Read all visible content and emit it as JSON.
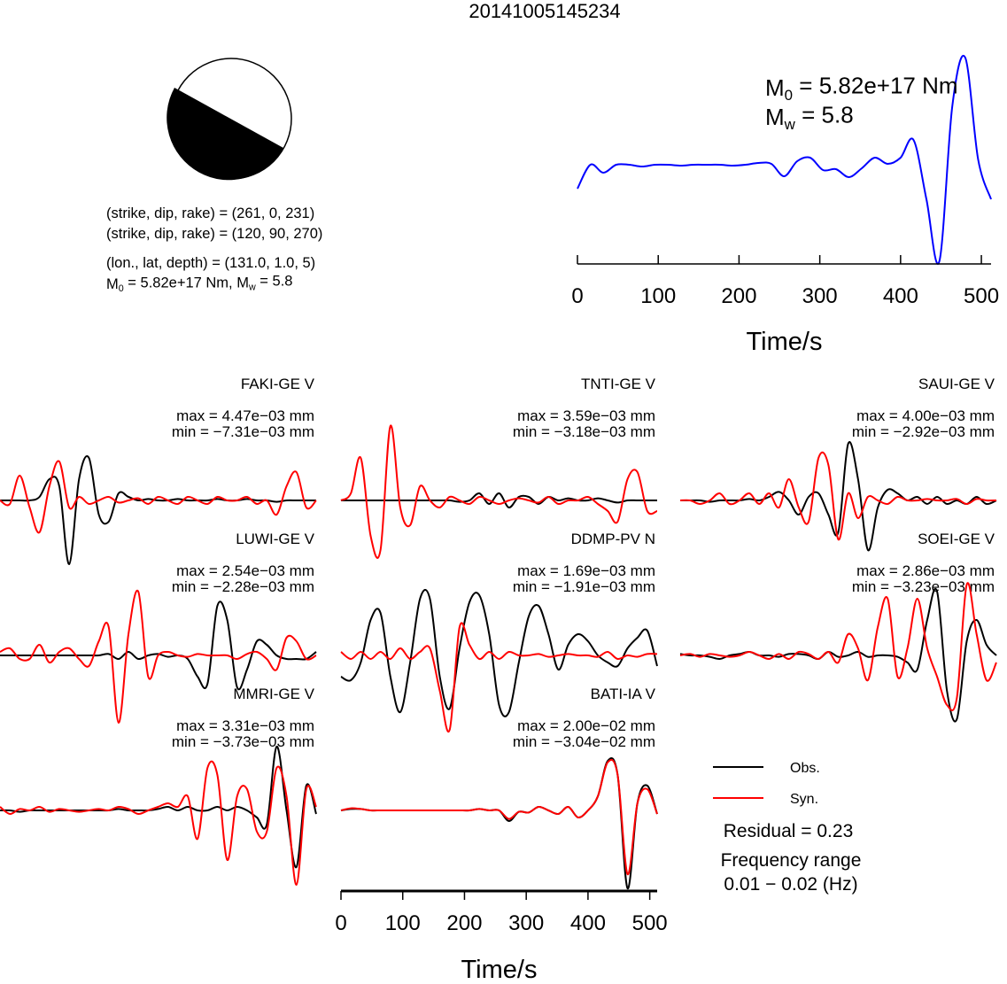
{
  "title": "20141005145234",
  "focal_mechanism": {
    "planes": [
      "(strike, dip, rake) = (261, 0, 231)",
      "(strike, dip, rake) = (120, 90, 270)"
    ],
    "location": "(lon., lat, depth) = (131.0, 1.0, 5)",
    "moment": [
      {
        "text": "M"
      },
      {
        "sub": "0"
      },
      {
        "text": " = 5.82e+17 Nm, M"
      },
      {
        "sub": "w"
      },
      {
        "text": " = 5.8"
      }
    ]
  },
  "chart_data": [
    {
      "type": "line",
      "x": [
        0,
        16,
        32,
        48,
        64,
        80,
        96,
        112,
        128,
        144,
        160,
        176,
        192,
        208,
        224,
        240,
        256,
        272,
        288,
        304,
        320,
        336,
        352,
        368,
        384,
        400,
        416,
        432,
        448,
        464,
        480,
        496,
        512
      ],
      "series": [
        {
          "color": "#0000ff",
          "values": [
            -0.27,
            0,
            -0.09,
            0,
            0,
            -0.02,
            0,
            0,
            -0.01,
            0,
            0,
            0,
            -0.01,
            0,
            0.02,
            0.01,
            -0.13,
            0.04,
            0.08,
            -0.06,
            -0.05,
            -0.14,
            -0.04,
            0.08,
            0.01,
            0.08,
            0.28,
            -0.39,
            -1.09,
            0.66,
            1.21,
            0.06,
            -0.39
          ]
        }
      ],
      "xlim": [
        0,
        512
      ],
      "xticks": [
        0,
        100,
        200,
        300,
        400,
        500
      ],
      "xlabel": "Time/s",
      "annotations": [
        [
          {
            "text": "M"
          },
          {
            "sub": "0"
          },
          {
            "text": " = 5.82e+17 Nm"
          }
        ],
        [
          {
            "text": "M"
          },
          {
            "sub": "w"
          },
          {
            "text": " = 5.8"
          }
        ]
      ]
    },
    {
      "type": "line",
      "title": "FAKI-GE V",
      "max_label": "max = 4.47e−03 mm",
      "min_label": "min = −7.31e−03 mm",
      "x": [
        0,
        16,
        32,
        48,
        64,
        80,
        96,
        112,
        128,
        144,
        160,
        176,
        192,
        208,
        224,
        240,
        256,
        272,
        288,
        304,
        320,
        336,
        352,
        368,
        384,
        400,
        416,
        432,
        448,
        464,
        480,
        496,
        512
      ],
      "xlim": [
        0,
        512
      ],
      "series": [
        {
          "name": "Obs.",
          "color": "#000000",
          "values": [
            0,
            0,
            0,
            0,
            0.05,
            0.3,
            0.2,
            -0.9,
            0.3,
            0.6,
            -0.2,
            -0.3,
            0.1,
            0.05,
            0,
            0.02,
            0,
            0,
            0.02,
            0,
            0,
            0,
            0.02,
            0,
            0,
            0.02,
            0,
            0,
            -0.02,
            0,
            0,
            0,
            0
          ]
        },
        {
          "name": "Syn.",
          "color": "#ff0000",
          "values": [
            0,
            -0.05,
            0.35,
            -0.1,
            -0.45,
            0.2,
            0.55,
            -0.1,
            0.05,
            -0.05,
            0,
            0.05,
            -0.03,
            0,
            0.03,
            -0.05,
            0.05,
            0,
            -0.05,
            0.05,
            0,
            -0.05,
            0.05,
            0,
            0,
            0.05,
            -0.05,
            0,
            -0.2,
            0.2,
            0.4,
            -0.1,
            0
          ]
        }
      ]
    },
    {
      "type": "line",
      "title": "TNTI-GE V",
      "max_label": "max = 3.59e−03 mm",
      "min_label": "min = −3.18e−03 mm",
      "x": [
        0,
        16,
        32,
        48,
        64,
        80,
        96,
        112,
        128,
        144,
        160,
        176,
        192,
        208,
        224,
        240,
        256,
        272,
        288,
        304,
        320,
        336,
        352,
        368,
        384,
        400,
        416,
        432,
        448,
        464,
        480,
        496,
        512
      ],
      "xlim": [
        0,
        512
      ],
      "series": [
        {
          "name": "Obs.",
          "color": "#000000",
          "values": [
            0,
            0,
            0,
            0,
            0,
            0,
            0,
            0,
            0,
            0,
            0,
            0,
            -0.02,
            0,
            0.1,
            -0.05,
            0.1,
            -0.1,
            0.05,
            0.05,
            -0.05,
            0.05,
            0,
            0.03,
            0,
            0,
            0.03,
            0,
            -0.03,
            0,
            0,
            0,
            0
          ]
        },
        {
          "name": "Syn.",
          "color": "#ff0000",
          "values": [
            0,
            0.1,
            0.6,
            -0.5,
            -0.7,
            1.05,
            -0.1,
            -0.35,
            0.2,
            0,
            -0.1,
            0.05,
            0,
            -0.05,
            0.05,
            0,
            -0.05,
            0,
            0.03,
            0,
            -0.03,
            0.05,
            -0.05,
            0,
            0,
            0.05,
            -0.05,
            -0.15,
            -0.3,
            0.3,
            0.4,
            -0.15,
            -0.15
          ]
        }
      ]
    },
    {
      "type": "line",
      "title": "SAUI-GE V",
      "max_label": "max = 4.00e−03 mm",
      "min_label": "min = −2.92e−03 mm",
      "x": [
        0,
        16,
        32,
        48,
        64,
        80,
        96,
        112,
        128,
        144,
        160,
        176,
        192,
        208,
        224,
        240,
        256,
        272,
        288,
        304,
        320,
        336,
        352,
        368,
        384,
        400,
        416,
        432,
        448,
        464,
        480,
        496,
        512
      ],
      "xlim": [
        0,
        512
      ],
      "series": [
        {
          "name": "Obs.",
          "color": "#000000",
          "values": [
            0,
            0,
            0,
            -0.02,
            0,
            0,
            0,
            0.02,
            0,
            0.05,
            0.12,
            0,
            -0.2,
            0.05,
            0.1,
            -0.2,
            -0.45,
            0.8,
            0.3,
            -0.7,
            -0.1,
            0.15,
            0.1,
            0,
            0.05,
            -0.05,
            0.05,
            -0.05,
            0,
            -0.05,
            0.05,
            -0.05,
            0
          ]
        },
        {
          "name": "Syn.",
          "color": "#ff0000",
          "values": [
            0,
            0,
            -0.05,
            0,
            0.1,
            -0.05,
            0,
            0.1,
            -0.05,
            0.1,
            -0.1,
            0.3,
            -0.1,
            -0.3,
            0.6,
            0.5,
            -0.55,
            0.1,
            -0.25,
            0.05,
            0,
            -0.05,
            0.05,
            0,
            0,
            0.02,
            0,
            0,
            0.02,
            -0.05,
            0.02,
            0,
            0
          ]
        }
      ]
    },
    {
      "type": "line",
      "title": "LUWI-GE V",
      "max_label": "max = 2.54e−03 mm",
      "min_label": "min = −2.28e−03 mm",
      "x": [
        0,
        16,
        32,
        48,
        64,
        80,
        96,
        112,
        128,
        144,
        160,
        176,
        192,
        208,
        224,
        240,
        256,
        272,
        288,
        304,
        320,
        336,
        352,
        368,
        384,
        400,
        416,
        432,
        448,
        464,
        480,
        496,
        512
      ],
      "xlim": [
        0,
        512
      ],
      "series": [
        {
          "name": "Obs.",
          "color": "#000000",
          "values": [
            0,
            0,
            0,
            0,
            0,
            0,
            0,
            0,
            0,
            0,
            0,
            0.02,
            -0.05,
            0.05,
            -0.05,
            0,
            0.02,
            -0.02,
            0,
            -0.05,
            -0.3,
            -0.4,
            0.7,
            0.5,
            -0.45,
            -0.2,
            0.2,
            0.15,
            0,
            -0.05,
            -0.05,
            -0.05,
            0.05
          ]
        },
        {
          "name": "Syn.",
          "color": "#ff0000",
          "values": [
            0.05,
            0.1,
            -0.05,
            -0.05,
            0.15,
            -0.1,
            0.05,
            0.1,
            -0.05,
            -0.15,
            0.2,
            0.4,
            -0.95,
            0.3,
            0.9,
            -0.3,
            0,
            0.05,
            0,
            -0.02,
            0.02,
            0,
            0,
            0,
            -0.05,
            0.02,
            0.05,
            -0.05,
            -0.2,
            0.25,
            0.2,
            -0.05,
            0
          ]
        }
      ]
    },
    {
      "type": "line",
      "title": "DDMP-PV N",
      "max_label": "max = 1.69e−03 mm",
      "min_label": "min = −1.91e−03 mm",
      "x": [
        0,
        16,
        32,
        48,
        64,
        80,
        96,
        112,
        128,
        144,
        160,
        176,
        192,
        208,
        224,
        240,
        256,
        272,
        288,
        304,
        320,
        336,
        352,
        368,
        384,
        400,
        416,
        432,
        448,
        464,
        480,
        496,
        512
      ],
      "xlim": [
        0,
        512
      ],
      "series": [
        {
          "name": "Obs.",
          "color": "#000000",
          "values": [
            -0.3,
            -0.35,
            -0.1,
            0.5,
            0.6,
            -0.3,
            -0.8,
            -0.1,
            0.8,
            0.8,
            -0.3,
            -0.75,
            0.1,
            0.75,
            0.85,
            0.3,
            -0.7,
            -0.8,
            -0.1,
            0.55,
            0.7,
            0.3,
            -0.2,
            0.15,
            0.3,
            0.2,
            0,
            -0.1,
            -0.15,
            0.1,
            0.25,
            0.35,
            -0.15
          ]
        },
        {
          "name": "Syn.",
          "color": "#ff0000",
          "values": [
            0.05,
            -0.05,
            0.05,
            -0.05,
            0.05,
            -0.05,
            0.1,
            -0.05,
            0.05,
            0.1,
            -0.5,
            -1.05,
            0.4,
            0.15,
            -0.05,
            0.05,
            -0.05,
            0.05,
            0,
            0,
            0.02,
            -0.02,
            0,
            0.02,
            0,
            0,
            -0.02,
            0.05,
            -0.05,
            0,
            -0.02,
            0.02,
            0.02
          ]
        }
      ]
    },
    {
      "type": "line",
      "title": "SOEI-GE V",
      "max_label": "max = 2.86e−03 mm",
      "min_label": "min = −3.23e−03 mm",
      "x": [
        0,
        16,
        32,
        48,
        64,
        80,
        96,
        112,
        128,
        144,
        160,
        176,
        192,
        208,
        224,
        240,
        256,
        272,
        288,
        304,
        320,
        336,
        352,
        368,
        384,
        400,
        416,
        432,
        448,
        464,
        480,
        496,
        512
      ],
      "xlim": [
        0,
        512
      ],
      "series": [
        {
          "name": "Obs.",
          "color": "#000000",
          "values": [
            0.02,
            0,
            0,
            -0.02,
            -0.05,
            0,
            0.02,
            0.05,
            0,
            0,
            -0.02,
            0.02,
            0.02,
            0,
            -0.05,
            0.05,
            -0.02,
            0,
            0.05,
            -0.02,
            0,
            0,
            -0.02,
            -0.1,
            -0.2,
            0.5,
            0.9,
            -0.5,
            -0.9,
            0.2,
            0.5,
            0.15,
            0
          ]
        },
        {
          "name": "Syn.",
          "color": "#ff0000",
          "values": [
            0,
            0.02,
            -0.02,
            0.02,
            0,
            -0.02,
            0,
            0.05,
            0,
            -0.05,
            0.02,
            -0.05,
            0.05,
            0.02,
            -0.05,
            0.05,
            -0.1,
            0.3,
            0.1,
            -0.35,
            0.4,
            0.8,
            -0.3,
            0.1,
            0.8,
            0.1,
            -0.3,
            -0.7,
            -0.6,
            1.0,
            0.3,
            -0.35,
            -0.1
          ]
        }
      ]
    },
    {
      "type": "line",
      "title": "MMRI-GE V",
      "max_label": "max = 3.31e−03 mm",
      "min_label": "min = −3.73e−03 mm",
      "x": [
        0,
        16,
        32,
        48,
        64,
        80,
        96,
        112,
        128,
        144,
        160,
        176,
        192,
        208,
        224,
        240,
        256,
        272,
        288,
        304,
        320,
        336,
        352,
        368,
        384,
        400,
        416,
        432,
        448,
        464,
        480,
        496,
        512
      ],
      "xlim": [
        0,
        512
      ],
      "series": [
        {
          "name": "Obs.",
          "color": "#000000",
          "values": [
            0,
            0,
            -0.02,
            0,
            0,
            0,
            0,
            0,
            0,
            0,
            0,
            0,
            0.02,
            0,
            0,
            0,
            0.02,
            0.05,
            0,
            0.05,
            0,
            0,
            0.05,
            0,
            0.05,
            0,
            -0.1,
            -0.2,
            0.9,
            0,
            -0.8,
            0.35,
            -0.05
          ]
        },
        {
          "name": "Syn.",
          "color": "#ff0000",
          "values": [
            0.05,
            -0.05,
            0.02,
            0,
            0.05,
            -0.02,
            0.02,
            0,
            -0.02,
            0,
            0.02,
            0,
            0.05,
            0.02,
            -0.05,
            0,
            0.05,
            0.1,
            0.05,
            0.2,
            -0.4,
            0.6,
            0.5,
            -0.7,
            0.2,
            0.3,
            -0.3,
            -0.3,
            0.6,
            0.2,
            -1.05,
            0.3,
            0.05
          ]
        }
      ]
    },
    {
      "type": "line",
      "title": "BATI-IA V",
      "max_label": "max = 2.00e−02 mm",
      "min_label": "min = −3.04e−02 mm",
      "x": [
        0,
        16,
        32,
        48,
        64,
        80,
        96,
        112,
        128,
        144,
        160,
        176,
        192,
        208,
        224,
        240,
        256,
        272,
        288,
        304,
        320,
        336,
        352,
        368,
        384,
        400,
        416,
        432,
        448,
        464,
        480,
        496,
        512
      ],
      "xlim": [
        0,
        512
      ],
      "xticks": [
        0,
        100,
        200,
        300,
        400,
        500
      ],
      "xlabel": "Time/s",
      "series": [
        {
          "name": "Obs.",
          "color": "#000000",
          "values": [
            0,
            0.02,
            0.02,
            0,
            0,
            0,
            0,
            0,
            0,
            0,
            0,
            0,
            0,
            0,
            0.02,
            0,
            0,
            -0.15,
            -0.02,
            -0.03,
            0.05,
            0,
            -0.05,
            0.05,
            -0.1,
            0,
            0.2,
            0.7,
            0.5,
            -1.1,
            0.1,
            0.35,
            -0.05
          ]
        },
        {
          "name": "Syn.",
          "color": "#ff0000",
          "values": [
            0,
            0.03,
            0.02,
            0,
            0,
            0,
            0,
            0,
            0,
            0,
            0,
            0,
            0,
            0,
            0.02,
            0,
            0,
            -0.12,
            -0.02,
            -0.03,
            0.05,
            0,
            -0.05,
            0.05,
            -0.1,
            0,
            0.2,
            0.68,
            0.5,
            -0.9,
            0.1,
            0.3,
            -0.05
          ]
        }
      ]
    }
  ],
  "residual": "Residual = 0.23",
  "frequency_range": [
    "Frequency range",
    "0.01 − 0.02 (Hz)"
  ]
}
